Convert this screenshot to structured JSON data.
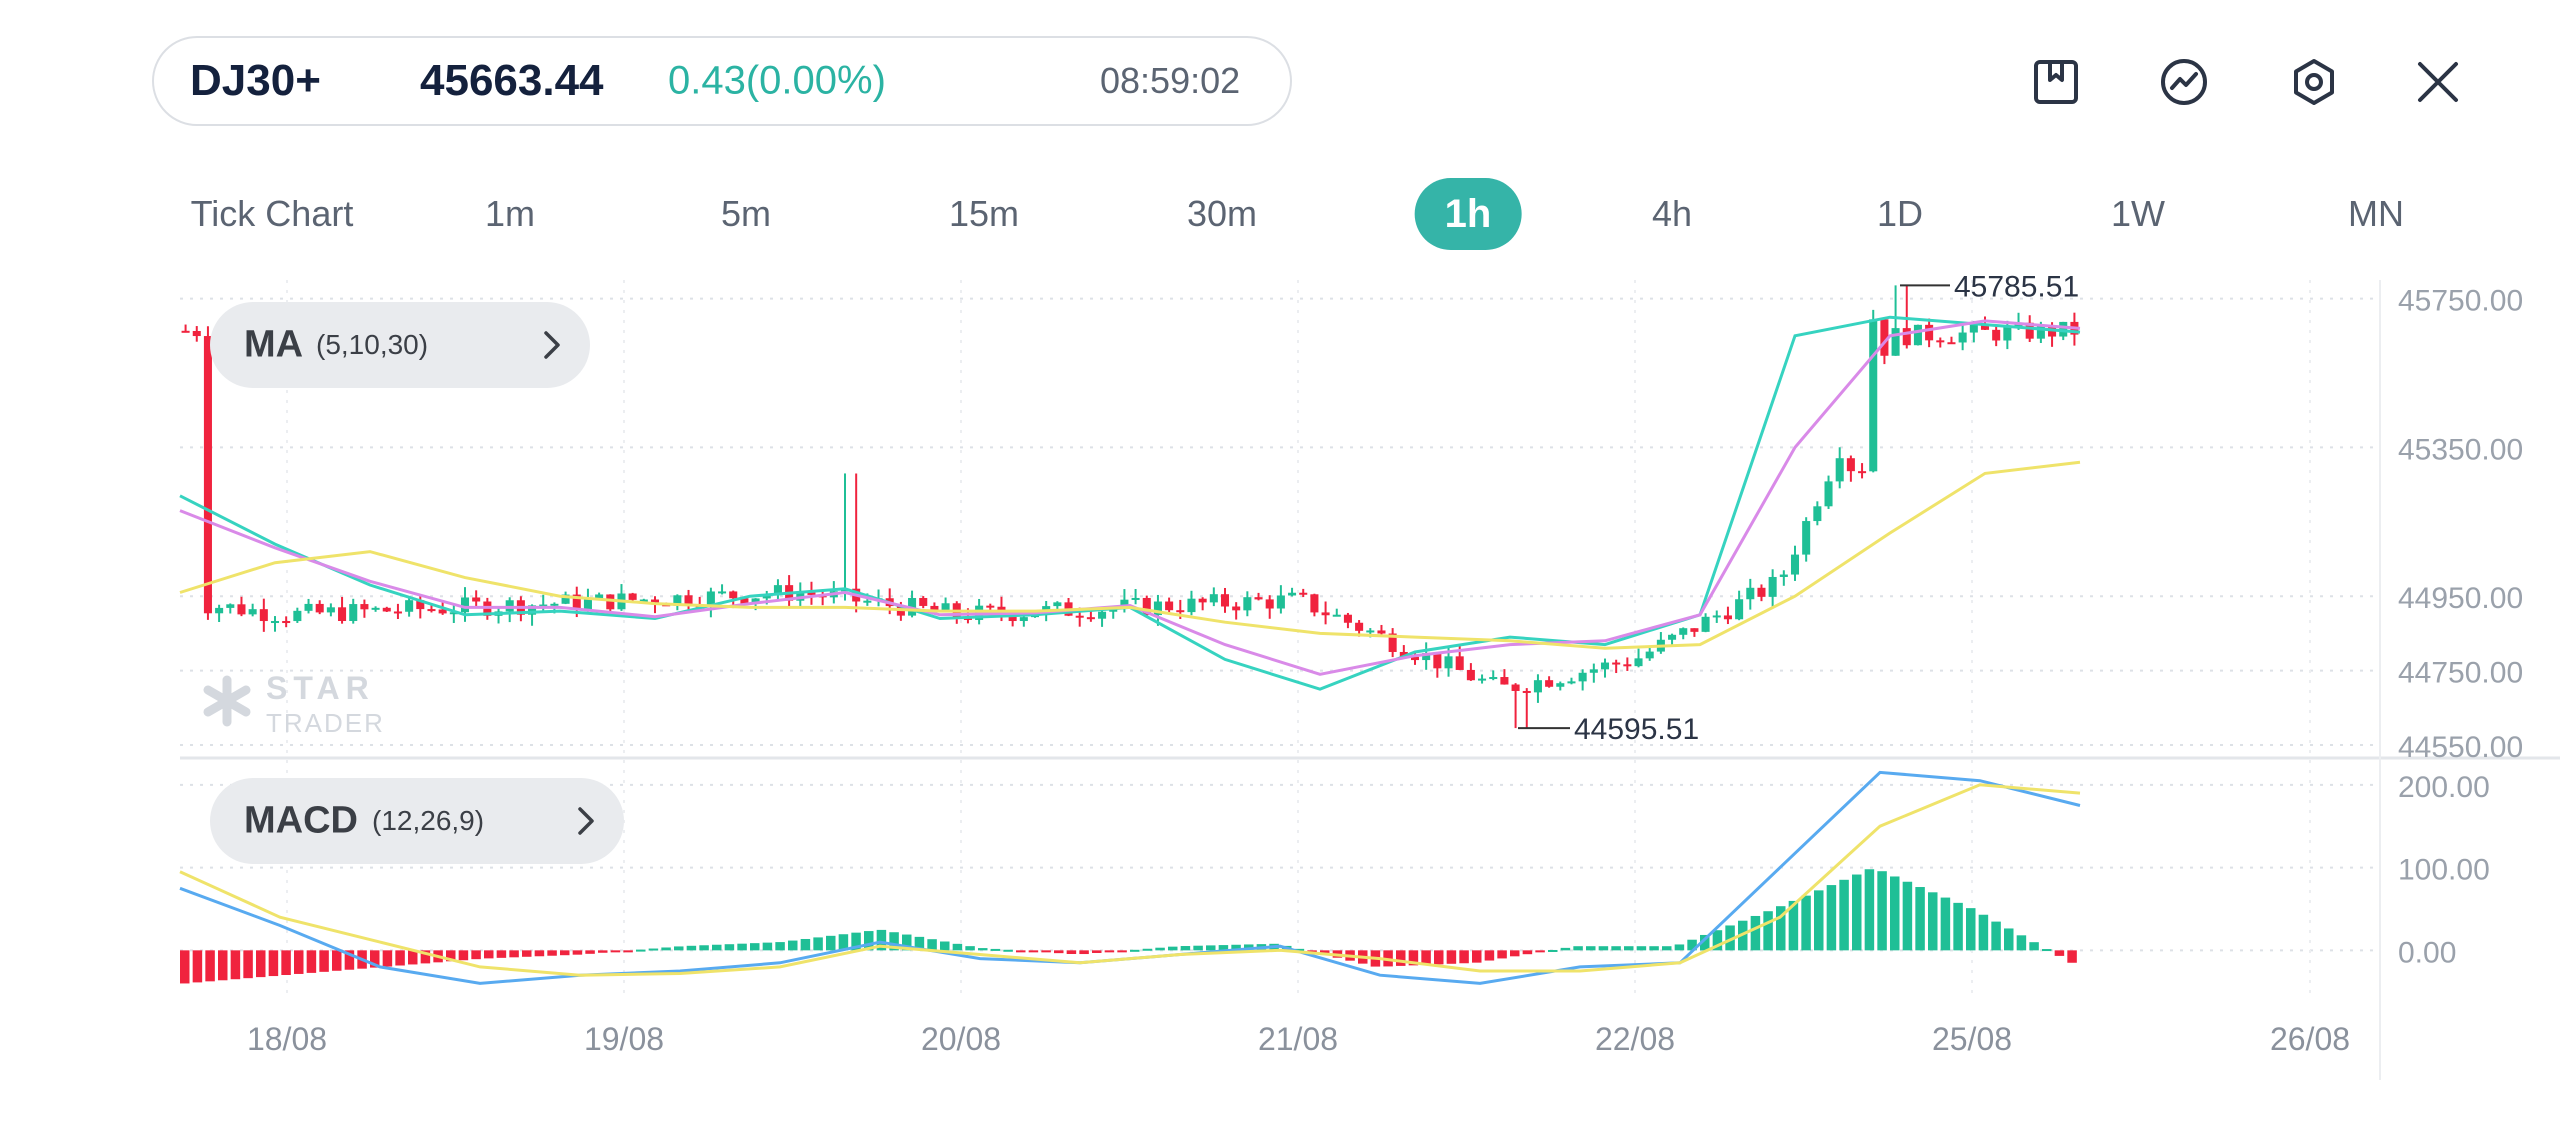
{
  "header": {
    "symbol": "DJ30+",
    "price": "45663.44",
    "change": "0.43(0.00%)",
    "time": "08:59:02"
  },
  "toolbar": {
    "icons": [
      "bookmark-icon",
      "trend-icon",
      "settings-icon",
      "close-icon"
    ]
  },
  "timeframes": {
    "items": [
      "Tick Chart",
      "1m",
      "5m",
      "15m",
      "30m",
      "1h",
      "4h",
      "1D",
      "1W",
      "MN"
    ],
    "active": "1h"
  },
  "ma_indicator": {
    "name": "MA",
    "params": "(5,10,30)"
  },
  "macd_indicator": {
    "name": "MACD",
    "params": "(12,26,9)"
  },
  "watermark": {
    "line1": "STAR",
    "line2": "TRADER"
  },
  "colors": {
    "up": "#1fbf96",
    "down": "#f0233e",
    "ma5": "#36d3c0",
    "ma10": "#d98ae8",
    "ma30": "#efe36a",
    "macd_line": "#58aaf0",
    "signal_line": "#efe36a",
    "accent": "#35b4a8"
  },
  "chart_data": [
    {
      "type": "candlestick",
      "title": "",
      "x_labels": [
        "18/08",
        "19/08",
        "20/08",
        "21/08",
        "22/08",
        "25/08",
        "26/08"
      ],
      "y_ticks": [
        "45750.00",
        "45350.00",
        "44950.00",
        "44750.00",
        "44550.00"
      ],
      "ylim": [
        44550,
        45800
      ],
      "max_label": "45785.51",
      "min_label": "44595.51",
      "grid": true,
      "key_points": [
        {
          "date": "18/08",
          "close": 44930
        },
        {
          "date": "19/08",
          "close": 44900
        },
        {
          "date": "19/08 (late)",
          "close": 44960,
          "high": 45280
        },
        {
          "date": "20/08",
          "close": 44900
        },
        {
          "date": "21/08",
          "close": 44940
        },
        {
          "date": "21/08 (late)",
          "close": 44700,
          "low": 44595.51
        },
        {
          "date": "22/08",
          "close": 44780
        },
        {
          "date": "22/08 (late)",
          "close": 44990
        },
        {
          "date": "25/08 (early)",
          "close": 45650,
          "high": 45785.51
        },
        {
          "date": "25/08",
          "close": 45663.44
        }
      ],
      "series": [
        {
          "name": "MA5",
          "values": [
            45220,
            45090,
            44980,
            44900,
            44910,
            44890,
            44950,
            44970,
            44890,
            44900,
            44920,
            44780,
            44700,
            44800,
            44840,
            44820,
            44900,
            45650,
            45700,
            45680,
            45660
          ]
        },
        {
          "name": "MA10",
          "values": [
            45180,
            45080,
            44990,
            44920,
            44920,
            44895,
            44930,
            44960,
            44900,
            44905,
            44925,
            44820,
            44740,
            44790,
            44820,
            44830,
            44900,
            45350,
            45650,
            45690,
            45670
          ]
        },
        {
          "name": "MA30",
          "values": [
            44960,
            45040,
            45070,
            45000,
            44950,
            44930,
            44920,
            44920,
            44910,
            44910,
            44920,
            44880,
            44850,
            44840,
            44830,
            44810,
            44820,
            44950,
            45120,
            45280,
            45310
          ]
        }
      ]
    },
    {
      "type": "macd",
      "title": "",
      "y_ticks": [
        "200.00",
        "100.00",
        "0.00"
      ],
      "ylim": [
        -60,
        230
      ],
      "series": [
        {
          "name": "MACD",
          "values": [
            75,
            30,
            -20,
            -40,
            -30,
            -25,
            -15,
            10,
            -10,
            -15,
            -5,
            5,
            -30,
            -40,
            -20,
            -15,
            100,
            215,
            205,
            175
          ]
        },
        {
          "name": "Signal",
          "values": [
            95,
            40,
            10,
            -20,
            -30,
            -28,
            -20,
            5,
            -5,
            -15,
            -5,
            0,
            -10,
            -25,
            -25,
            -15,
            40,
            150,
            200,
            190
          ]
        },
        {
          "name": "Histogram",
          "values": [
            -40,
            -30,
            -20,
            -10,
            -5,
            5,
            10,
            25,
            3,
            -5,
            5,
            8,
            -20,
            -15,
            5,
            5,
            50,
            100,
            50,
            -15
          ]
        }
      ]
    }
  ]
}
